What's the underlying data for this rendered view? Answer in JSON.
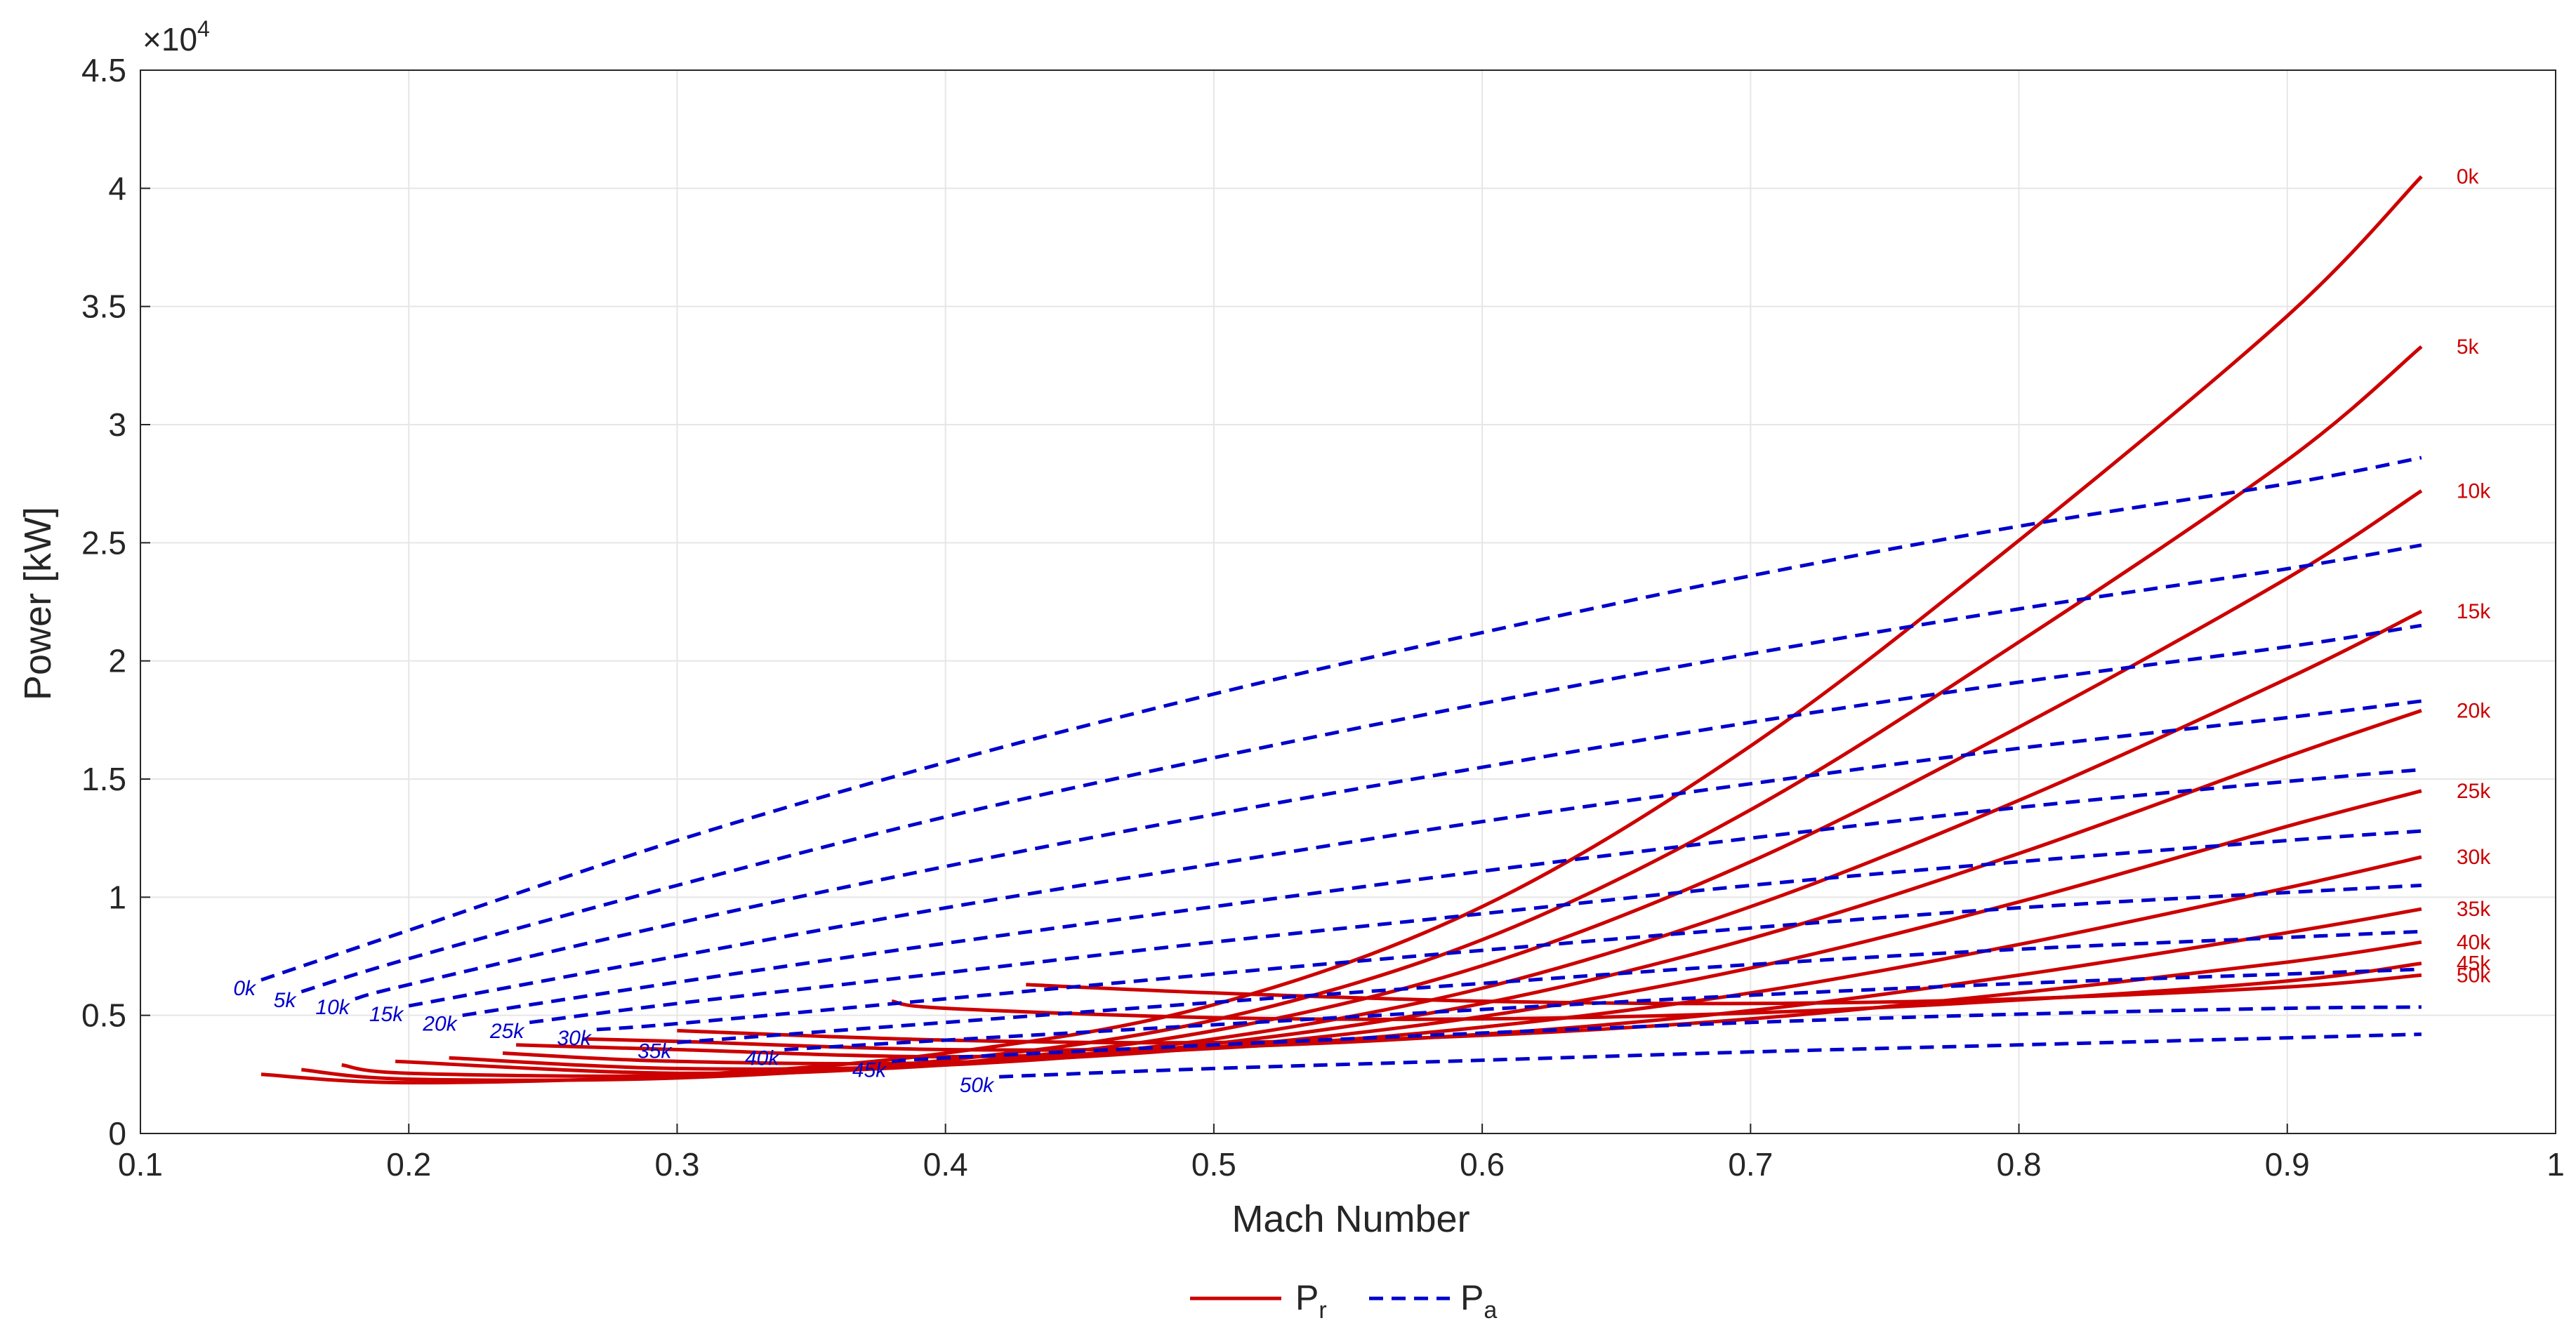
{
  "chart_data": {
    "type": "line",
    "xlabel": "Mach Number",
    "ylabel": "Power [kW]",
    "y_exponent_label": "×10",
    "y_exponent_power": "4",
    "xlim": [
      0.1,
      1.0
    ],
    "ylim": [
      0,
      45000
    ],
    "x_ticks": [
      "0.1",
      "0.2",
      "0.3",
      "0.4",
      "0.5",
      "0.6",
      "0.7",
      "0.8",
      "0.9",
      "1"
    ],
    "y_ticks": [
      "0",
      "0.5",
      "1",
      "1.5",
      "2",
      "2.5",
      "3",
      "3.5",
      "4",
      "4.5"
    ],
    "grid": true,
    "legend": {
      "placement": "bottom-center",
      "entries": [
        {
          "symbol": "P",
          "subscript": "r",
          "style": "solid",
          "color": "#cc0000"
        },
        {
          "symbol": "P",
          "subscript": "a",
          "style": "dashed",
          "color": "#0000cc"
        }
      ]
    },
    "colors": {
      "required": "#cc0000",
      "available": "#0000cc",
      "grid": "#e6e6e6",
      "axis": "#262626"
    },
    "series_required": [
      {
        "label": "0k",
        "points": [
          [
            0.145,
            2500
          ],
          [
            0.2,
            2150
          ],
          [
            0.3,
            2450
          ],
          [
            0.4,
            3400
          ],
          [
            0.5,
            5450
          ],
          [
            0.6,
            9600
          ],
          [
            0.7,
            16400
          ],
          [
            0.8,
            25100
          ],
          [
            0.9,
            34600
          ],
          [
            0.95,
            40500
          ]
        ]
      },
      {
        "label": "5k",
        "points": [
          [
            0.16,
            2700
          ],
          [
            0.2,
            2300
          ],
          [
            0.3,
            2350
          ],
          [
            0.4,
            3100
          ],
          [
            0.5,
            4800
          ],
          [
            0.6,
            8200
          ],
          [
            0.7,
            13700
          ],
          [
            0.8,
            20800
          ],
          [
            0.9,
            28500
          ],
          [
            0.95,
            33300
          ]
        ]
      },
      {
        "label": "10k",
        "points": [
          [
            0.175,
            2900
          ],
          [
            0.2,
            2550
          ],
          [
            0.3,
            2450
          ],
          [
            0.4,
            2950
          ],
          [
            0.5,
            4350
          ],
          [
            0.6,
            7100
          ],
          [
            0.7,
            11500
          ],
          [
            0.8,
            17200
          ],
          [
            0.9,
            23500
          ],
          [
            0.95,
            27200
          ]
        ]
      },
      {
        "label": "15k",
        "points": [
          [
            0.195,
            3050
          ],
          [
            0.3,
            2550
          ],
          [
            0.4,
            2900
          ],
          [
            0.5,
            4000
          ],
          [
            0.6,
            6150
          ],
          [
            0.7,
            9600
          ],
          [
            0.8,
            14100
          ],
          [
            0.9,
            19250
          ],
          [
            0.95,
            22100
          ]
        ]
      },
      {
        "label": "20k",
        "points": [
          [
            0.215,
            3200
          ],
          [
            0.3,
            2750
          ],
          [
            0.4,
            2900
          ],
          [
            0.5,
            3800
          ],
          [
            0.6,
            5500
          ],
          [
            0.7,
            8250
          ],
          [
            0.8,
            11850
          ],
          [
            0.9,
            15950
          ],
          [
            0.95,
            17900
          ]
        ]
      },
      {
        "label": "25k",
        "points": [
          [
            0.235,
            3400
          ],
          [
            0.3,
            3050
          ],
          [
            0.4,
            3000
          ],
          [
            0.5,
            3650
          ],
          [
            0.6,
            4950
          ],
          [
            0.7,
            7000
          ],
          [
            0.8,
            9800
          ],
          [
            0.9,
            13000
          ],
          [
            0.95,
            14500
          ]
        ]
      },
      {
        "label": "30k",
        "points": [
          [
            0.24,
            3750
          ],
          [
            0.3,
            3550
          ],
          [
            0.4,
            3250
          ],
          [
            0.5,
            3600
          ],
          [
            0.6,
            4500
          ],
          [
            0.7,
            5950
          ],
          [
            0.8,
            8000
          ],
          [
            0.9,
            10400
          ],
          [
            0.95,
            11700
          ]
        ]
      },
      {
        "label": "35k",
        "points": [
          [
            0.265,
            4000
          ],
          [
            0.3,
            3900
          ],
          [
            0.4,
            3550
          ],
          [
            0.5,
            3650
          ],
          [
            0.6,
            4200
          ],
          [
            0.7,
            5200
          ],
          [
            0.8,
            6700
          ],
          [
            0.9,
            8500
          ],
          [
            0.95,
            9500
          ]
        ]
      },
      {
        "label": "40k",
        "points": [
          [
            0.3,
            4350
          ],
          [
            0.4,
            3950
          ],
          [
            0.5,
            3850
          ],
          [
            0.6,
            4150
          ],
          [
            0.7,
            4850
          ],
          [
            0.8,
            5950
          ],
          [
            0.9,
            7250
          ],
          [
            0.95,
            8100
          ]
        ]
      },
      {
        "label": "45k",
        "points": [
          [
            0.38,
            5600
          ],
          [
            0.4,
            5300
          ],
          [
            0.5,
            4900
          ],
          [
            0.6,
            4850
          ],
          [
            0.7,
            5100
          ],
          [
            0.8,
            5650
          ],
          [
            0.9,
            6450
          ],
          [
            0.95,
            7200
          ]
        ]
      },
      {
        "label": "50k",
        "points": [
          [
            0.43,
            6300
          ],
          [
            0.5,
            5950
          ],
          [
            0.6,
            5600
          ],
          [
            0.7,
            5500
          ],
          [
            0.8,
            5700
          ],
          [
            0.9,
            6200
          ],
          [
            0.95,
            6700
          ]
        ]
      }
    ],
    "series_available": [
      {
        "label": "0k",
        "points": [
          [
            0.145,
            6500
          ],
          [
            0.2,
            8600
          ],
          [
            0.3,
            12400
          ],
          [
            0.4,
            15700
          ],
          [
            0.5,
            18600
          ],
          [
            0.6,
            21200
          ],
          [
            0.7,
            23600
          ],
          [
            0.8,
            25700
          ],
          [
            0.9,
            27500
          ],
          [
            0.95,
            28600
          ]
        ]
      },
      {
        "label": "5k",
        "points": [
          [
            0.16,
            6000
          ],
          [
            0.2,
            7400
          ],
          [
            0.3,
            10500
          ],
          [
            0.4,
            13400
          ],
          [
            0.5,
            15900
          ],
          [
            0.6,
            18200
          ],
          [
            0.7,
            20300
          ],
          [
            0.8,
            22200
          ],
          [
            0.9,
            23900
          ],
          [
            0.95,
            24900
          ]
        ]
      },
      {
        "label": "10k",
        "points": [
          [
            0.18,
            5700
          ],
          [
            0.2,
            6300
          ],
          [
            0.3,
            8900
          ],
          [
            0.4,
            11300
          ],
          [
            0.5,
            13500
          ],
          [
            0.6,
            15500
          ],
          [
            0.7,
            17400
          ],
          [
            0.8,
            19100
          ],
          [
            0.9,
            20600
          ],
          [
            0.95,
            21500
          ]
        ]
      },
      {
        "label": "15k",
        "points": [
          [
            0.2,
            5400
          ],
          [
            0.3,
            7500
          ],
          [
            0.4,
            9550
          ],
          [
            0.5,
            11400
          ],
          [
            0.6,
            13200
          ],
          [
            0.7,
            14800
          ],
          [
            0.8,
            16300
          ],
          [
            0.9,
            17600
          ],
          [
            0.95,
            18300
          ]
        ]
      },
      {
        "label": "20k",
        "points": [
          [
            0.22,
            5000
          ],
          [
            0.3,
            6400
          ],
          [
            0.4,
            8050
          ],
          [
            0.5,
            9600
          ],
          [
            0.6,
            11100
          ],
          [
            0.7,
            12500
          ],
          [
            0.8,
            13800
          ],
          [
            0.9,
            14900
          ],
          [
            0.95,
            15400
          ]
        ]
      },
      {
        "label": "25k",
        "points": [
          [
            0.245,
            4700
          ],
          [
            0.3,
            5500
          ],
          [
            0.4,
            6800
          ],
          [
            0.5,
            8100
          ],
          [
            0.6,
            9300
          ],
          [
            0.7,
            10500
          ],
          [
            0.8,
            11500
          ],
          [
            0.9,
            12400
          ],
          [
            0.95,
            12800
          ]
        ]
      },
      {
        "label": "30k",
        "points": [
          [
            0.27,
            4400
          ],
          [
            0.3,
            4650
          ],
          [
            0.4,
            5700
          ],
          [
            0.5,
            6750
          ],
          [
            0.6,
            7750
          ],
          [
            0.7,
            8700
          ],
          [
            0.8,
            9550
          ],
          [
            0.9,
            10200
          ],
          [
            0.95,
            10500
          ]
        ]
      },
      {
        "label": "35k",
        "points": [
          [
            0.3,
            3850
          ],
          [
            0.4,
            4700
          ],
          [
            0.5,
            5550
          ],
          [
            0.6,
            6350
          ],
          [
            0.7,
            7150
          ],
          [
            0.8,
            7800
          ],
          [
            0.9,
            8300
          ],
          [
            0.95,
            8550
          ]
        ]
      },
      {
        "label": "40k",
        "points": [
          [
            0.34,
            3550
          ],
          [
            0.4,
            3950
          ],
          [
            0.5,
            4600
          ],
          [
            0.6,
            5250
          ],
          [
            0.7,
            5850
          ],
          [
            0.8,
            6350
          ],
          [
            0.9,
            6750
          ],
          [
            0.95,
            6950
          ]
        ]
      },
      {
        "label": "45k",
        "points": [
          [
            0.38,
            3050
          ],
          [
            0.4,
            3200
          ],
          [
            0.5,
            3750
          ],
          [
            0.6,
            4250
          ],
          [
            0.7,
            4700
          ],
          [
            0.8,
            5050
          ],
          [
            0.9,
            5300
          ],
          [
            0.95,
            5350
          ]
        ]
      },
      {
        "label": "50k",
        "points": [
          [
            0.42,
            2400
          ],
          [
            0.5,
            2750
          ],
          [
            0.6,
            3100
          ],
          [
            0.7,
            3450
          ],
          [
            0.8,
            3750
          ],
          [
            0.9,
            4050
          ],
          [
            0.95,
            4200
          ]
        ]
      }
    ]
  }
}
